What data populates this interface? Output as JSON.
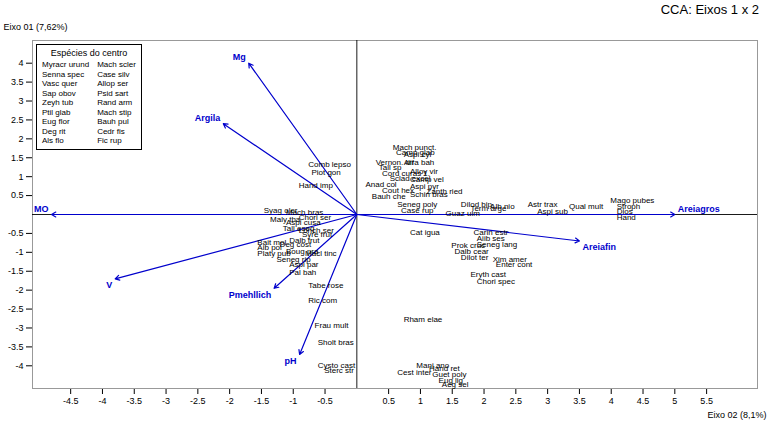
{
  "chart_data": {
    "type": "biplot",
    "title": "CCA:  Eixos 1 x 2",
    "x_label": "Eixo 02 (8,1%)",
    "y_label": "Eixo 01 (7,62%)",
    "xlim": [
      -5.1,
      6.3
    ],
    "ylim": [
      -4.6,
      4.6
    ],
    "xticks": [
      -4.5,
      -4,
      -3.5,
      -3,
      -2.5,
      -2,
      -1.5,
      -1,
      -0.5,
      0.5,
      1,
      1.5,
      2,
      2.5,
      3,
      3.5,
      4,
      4.5,
      5,
      5.5
    ],
    "yticks": [
      -4,
      -3.5,
      -3,
      -2.5,
      -2,
      -1.5,
      -1,
      -0.5,
      0.5,
      1,
      1.5,
      2,
      2.5,
      3,
      3.5,
      4
    ],
    "arrows": {
      "color": "#0000cc",
      "items": [
        {
          "label": "Mg",
          "dx": -1.7,
          "dy": 4.0
        },
        {
          "label": "Argila",
          "dx": -2.1,
          "dy": 2.4
        },
        {
          "label": "V",
          "dx": -3.8,
          "dy": -1.7
        },
        {
          "label": "Pmehllich",
          "dx": -1.3,
          "dy": -1.95
        },
        {
          "label": "pH",
          "dx": -0.9,
          "dy": -3.7
        },
        {
          "label": "MO",
          "dx": -4.8,
          "dy": 0.0
        },
        {
          "label": "Areiagros",
          "dx": 5.0,
          "dy": 0.0
        },
        {
          "label": "Areiafin",
          "dx": 3.5,
          "dy": -0.7
        }
      ]
    },
    "points": [
      {
        "label": "Mach punct.",
        "x": 0.55,
        "y": 1.77
      },
      {
        "label": "Camp glab",
        "x": 0.6,
        "y": 1.63
      },
      {
        "label": "Vernon. dif",
        "x": 0.28,
        "y": 1.38
      },
      {
        "label": "Tall sp",
        "x": 0.33,
        "y": 1.24
      },
      {
        "label": "Cord curas 1.",
        "x": 0.38,
        "y": 1.09
      },
      {
        "label": "Sclad excel",
        "x": 0.5,
        "y": 0.95
      },
      {
        "label": "Anad col",
        "x": 0.12,
        "y": 0.79
      },
      {
        "label": "Cout hex",
        "x": 0.38,
        "y": 0.63
      },
      {
        "label": "Bauh che",
        "x": 0.22,
        "y": 0.48
      },
      {
        "label": "Comb lepso",
        "x": -0.78,
        "y": 1.32
      },
      {
        "label": "Piot gon",
        "x": -0.73,
        "y": 1.12
      },
      {
        "label": "Hand imp",
        "x": -0.93,
        "y": 0.78
      },
      {
        "label": "Syag oler",
        "x": -1.48,
        "y": 0.12
      },
      {
        "label": "Mach bras",
        "x": -1.13,
        "y": 0.06
      },
      {
        "label": "Maly tha",
        "x": -1.38,
        "y": -0.13
      },
      {
        "label": "Aspi cusa",
        "x": -1.13,
        "y": -0.22
      },
      {
        "label": "Chori ser",
        "x": -0.93,
        "y": -0.08
      },
      {
        "label": "Tall eseq",
        "x": -1.18,
        "y": -0.38
      },
      {
        "label": "Lonch ser",
        "x": -0.93,
        "y": -0.43
      },
      {
        "label": "Syre frut",
        "x": -0.88,
        "y": -0.53
      },
      {
        "label": "Dalb frut",
        "x": -1.08,
        "y": -0.68
      },
      {
        "label": "Bait mol",
        "x": -1.58,
        "y": -0.73
      },
      {
        "label": "Deg cost",
        "x": -1.23,
        "y": -0.78
      },
      {
        "label": "Aib pol",
        "x": -1.58,
        "y": -0.88
      },
      {
        "label": "Platy pub",
        "x": -1.58,
        "y": -1.03
      },
      {
        "label": "Boug pra",
        "x": -1.13,
        "y": -0.98
      },
      {
        "label": "Macl tinc",
        "x": -0.83,
        "y": -1.03
      },
      {
        "label": "Seneg rip",
        "x": -1.28,
        "y": -1.18
      },
      {
        "label": "Aspi par",
        "x": -1.08,
        "y": -1.33
      },
      {
        "label": "Pal bah",
        "x": -1.08,
        "y": -1.53
      },
      {
        "label": "Tabe rose",
        "x": -0.78,
        "y": -1.88
      },
      {
        "label": "Ric com",
        "x": -0.78,
        "y": -2.28
      },
      {
        "label": "Frau mult",
        "x": -0.68,
        "y": -2.93
      },
      {
        "label": "Sholt bras",
        "x": -0.63,
        "y": -3.38
      },
      {
        "label": "Cysto cast",
        "x": -0.63,
        "y": -3.98
      },
      {
        "label": "Sterc str",
        "x": -0.53,
        "y": -4.13
      },
      {
        "label": "Aspi cyl",
        "x": 0.72,
        "y": 1.58
      },
      {
        "label": "Arra bah",
        "x": 0.72,
        "y": 1.38
      },
      {
        "label": "Alloy vir",
        "x": 0.82,
        "y": 1.13
      },
      {
        "label": "Camp vel",
        "x": 0.82,
        "y": 0.93
      },
      {
        "label": "Aspi pyr",
        "x": 0.82,
        "y": 0.73
      },
      {
        "label": "Schin bras",
        "x": 0.82,
        "y": 0.53
      },
      {
        "label": "Case rup",
        "x": 0.68,
        "y": 0.12
      },
      {
        "label": "Guaz ulm",
        "x": 1.38,
        "y": 0.02
      },
      {
        "label": "Seneg poly",
        "x": 0.62,
        "y": 0.27
      },
      {
        "label": "Zanth ried",
        "x": 1.08,
        "y": 0.62
      },
      {
        "label": "Dilod bip",
        "x": 1.62,
        "y": 0.27
      },
      {
        "label": "Term arge",
        "x": 1.77,
        "y": 0.17
      },
      {
        "label": "Alb nio",
        "x": 2.08,
        "y": 0.22
      },
      {
        "label": "Astr trax",
        "x": 2.67,
        "y": 0.27
      },
      {
        "label": "Aspi sub",
        "x": 2.82,
        "y": 0.07
      },
      {
        "label": "Qual mult",
        "x": 3.32,
        "y": 0.22
      },
      {
        "label": "Mago pubes",
        "x": 3.97,
        "y": 0.37
      },
      {
        "label": "Stroph",
        "x": 4.07,
        "y": 0.22
      },
      {
        "label": "Dios",
        "x": 4.07,
        "y": 0.07
      },
      {
        "label": "Hand",
        "x": 4.07,
        "y": -0.08
      },
      {
        "label": "Cat igua",
        "x": 0.82,
        "y": -0.48
      },
      {
        "label": "Carin estr",
        "x": 1.82,
        "y": -0.48
      },
      {
        "label": "Aiib ses",
        "x": 1.87,
        "y": -0.63
      },
      {
        "label": "Seneg lang",
        "x": 1.87,
        "y": -0.78
      },
      {
        "label": "Prok cruc",
        "x": 1.47,
        "y": -0.83
      },
      {
        "label": "Dalb cear",
        "x": 1.52,
        "y": -0.98
      },
      {
        "label": "Dilot ter",
        "x": 1.62,
        "y": -1.13
      },
      {
        "label": "Xim amer",
        "x": 2.12,
        "y": -1.18
      },
      {
        "label": "Enter cont",
        "x": 2.17,
        "y": -1.33
      },
      {
        "label": "Eryth cast",
        "x": 1.77,
        "y": -1.58
      },
      {
        "label": "Chori spec",
        "x": 1.87,
        "y": -1.78
      },
      {
        "label": "Rham elae",
        "x": 0.72,
        "y": -2.78
      },
      {
        "label": "Mani ano",
        "x": 0.92,
        "y": -3.98
      },
      {
        "label": "Cest inter",
        "x": 0.62,
        "y": -4.18
      },
      {
        "label": "Hand ret",
        "x": 1.12,
        "y": -4.08
      },
      {
        "label": "Guet poly",
        "x": 1.17,
        "y": -4.23
      },
      {
        "label": "Eug lig",
        "x": 1.27,
        "y": -4.38
      },
      {
        "label": "Aeg sel",
        "x": 1.32,
        "y": -4.48
      }
    ],
    "inset": {
      "title": "Espécies do centro",
      "columns": [
        [
          "Myracr urund",
          "Senna spec",
          "Vasc quer",
          "Sap obov",
          "Zeyh tub",
          "Ptil glab",
          "Eug flor",
          "Deg rit",
          "Als flo"
        ],
        [
          "Mach scler",
          "Case silv",
          "Allop ser",
          "Psid sart",
          "Rand arm",
          "Mach stip",
          "Bauh pul",
          "Cedr fis",
          "Fic rup"
        ]
      ]
    }
  }
}
